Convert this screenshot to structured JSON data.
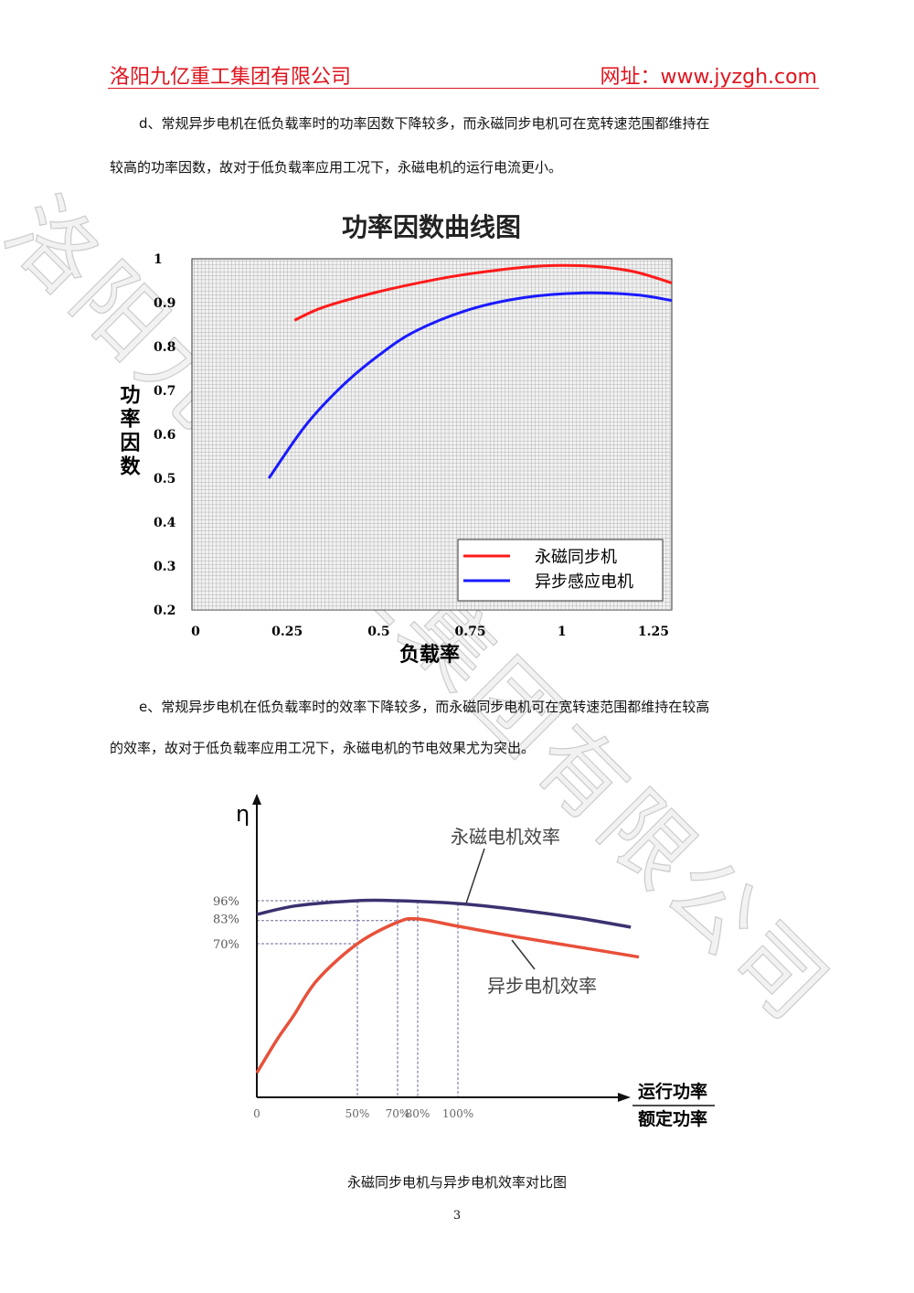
{
  "header": {
    "company": "洛阳九亿重工集团有限公司",
    "website": "网址：www.jyzgh.com",
    "color": "#e0141e"
  },
  "watermark": "洛阳九亿重工集团有限公司",
  "paragraph_d": {
    "line1": "d、常规异步电机在低负载率时的功率因数下降较多，而永磁同步电机可在宽转速范围都维持在",
    "line2": "较高的功率因数，故对于低负载率应用工况下，永磁电机的运行电流更小。"
  },
  "paragraph_e": {
    "line1": "e、常规异步电机在低负载率时的效率下降较多，而永磁同步电机可在宽转速范围都维持在较高",
    "line2": "的效率，故对于低负载率应用工况下，永磁电机的节电效果尤为突出。"
  },
  "chart_data": [
    {
      "type": "line",
      "title": "功率因数曲线图",
      "xlabel": "负载率",
      "ylabel": "功率因数",
      "xlim": [
        -0.01,
        1.3
      ],
      "ylim": [
        0.2,
        1.0
      ],
      "xticks": [
        "0",
        "0.25",
        "0.5",
        "0.75",
        "1",
        "1.25"
      ],
      "yticks": [
        "1",
        "0.9",
        "0.8",
        "0.7",
        "0.6",
        "0.5",
        "0.4",
        "0.3",
        "0.2"
      ],
      "grid": true,
      "legend": "bottom-right",
      "series": [
        {
          "name": "永磁同步机",
          "color": "#ff1a1a",
          "x": [
            0.27,
            0.35,
            0.5,
            0.65,
            0.75,
            0.9,
            1.0,
            1.1,
            1.2,
            1.3
          ],
          "y": [
            0.86,
            0.89,
            0.925,
            0.952,
            0.966,
            0.981,
            0.985,
            0.982,
            0.97,
            0.945
          ]
        },
        {
          "name": "异步感应电机",
          "color": "#1a1aff",
          "x": [
            0.2,
            0.3,
            0.4,
            0.5,
            0.6,
            0.75,
            0.9,
            1.05,
            1.2,
            1.3
          ],
          "y": [
            0.5,
            0.62,
            0.71,
            0.78,
            0.835,
            0.885,
            0.912,
            0.922,
            0.918,
            0.905
          ]
        }
      ]
    },
    {
      "type": "line",
      "ylabel": "η",
      "xlabel_top": "运行功率",
      "xlabel_bottom": "额定功率",
      "xticks": [
        "0",
        "50%",
        "70%",
        "80%",
        "100%"
      ],
      "xtick_values": [
        0,
        50,
        70,
        80,
        100
      ],
      "yticks": [
        "96%",
        "83%",
        "70%"
      ],
      "ytick_values": [
        96,
        83,
        70
      ],
      "grid": false,
      "series": [
        {
          "name": "永磁电机效率",
          "color": "#3a3270",
          "x": [
            0,
            20,
            50,
            70,
            100,
            130,
            160,
            186
          ],
          "y": [
            87.7,
            93,
            96,
            96,
            94.3,
            90.5,
            85.5,
            80
          ]
        },
        {
          "name": "异步电机效率",
          "color": "#e8503a",
          "x": [
            0,
            10,
            18,
            30,
            50,
            70,
            80,
            100,
            130,
            160,
            190
          ],
          "y": [
            -8,
            12,
            26,
            48,
            70,
            83,
            85,
            80.6,
            74,
            68,
            62
          ]
        }
      ]
    }
  ],
  "caption": "永磁同步电机与异步电机效率对比图",
  "page_number": "3"
}
